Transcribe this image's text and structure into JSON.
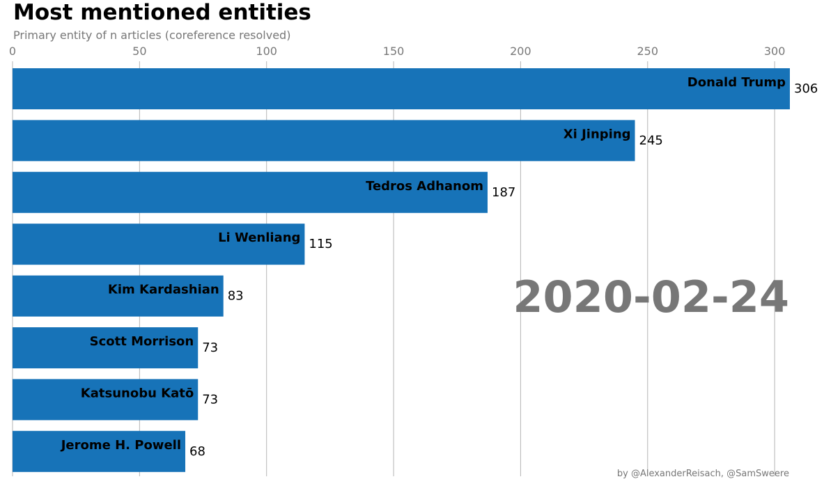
{
  "chart_data": {
    "type": "bar",
    "orientation": "horizontal",
    "title": "Most mentioned entities",
    "subtitle": "Primary entity of n articles (coreference resolved)",
    "xlim": [
      0,
      306
    ],
    "xticks": [
      0,
      50,
      100,
      150,
      200,
      250,
      300
    ],
    "grid": true,
    "categories": [
      "Donald Trump",
      "Xi Jinping",
      "Tedros Adhanom",
      "Li Wenliang",
      "Kim Kardashian",
      "Scott Morrison",
      "Katsunobu Katō",
      "Jerome H. Powell"
    ],
    "values": [
      306,
      245,
      187,
      115,
      83,
      73,
      73,
      68
    ],
    "bar_color": "#1773b8",
    "date": "2020-02-24",
    "credit": "by @AlexanderReisach, @SamSweere"
  }
}
